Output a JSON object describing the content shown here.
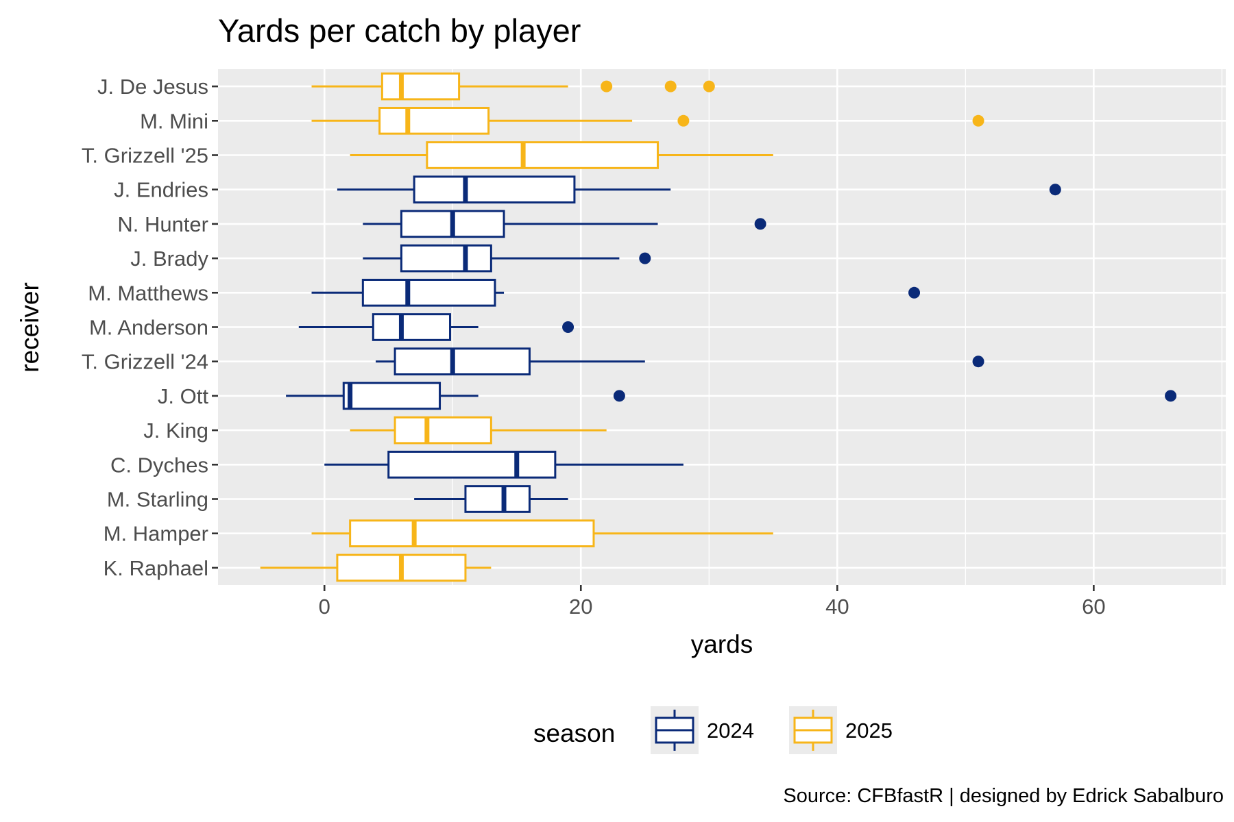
{
  "chart_data": {
    "type": "boxplot",
    "title": "Yards per catch by player",
    "xlabel": "yards",
    "ylabel": "receiver",
    "xlim": [
      -8.3,
      70.3
    ],
    "xticks": [
      0,
      20,
      40,
      60
    ],
    "grid": true,
    "legend": {
      "title": "season",
      "position": "bottom",
      "entries": [
        {
          "label": "2024",
          "color": "#0a2a78"
        },
        {
          "label": "2025",
          "color": "#f7b519"
        }
      ]
    },
    "caption": "Source: CFBfastR | designed by Edrick Sabalburo",
    "series": [
      {
        "receiver": "J. De Jesus",
        "season": "2025",
        "whisker_low": -1,
        "q1": 4.5,
        "median": 6,
        "q3": 10.5,
        "whisker_high": 19,
        "outliers": [
          22,
          27,
          30
        ]
      },
      {
        "receiver": "M. Mini",
        "season": "2025",
        "whisker_low": -1,
        "q1": 4.3,
        "median": 6.5,
        "q3": 12.8,
        "whisker_high": 24,
        "outliers": [
          28,
          51
        ]
      },
      {
        "receiver": "T. Grizzell '25",
        "season": "2025",
        "whisker_low": 2,
        "q1": 8,
        "median": 15.5,
        "q3": 26,
        "whisker_high": 35,
        "outliers": []
      },
      {
        "receiver": "J. Endries",
        "season": "2024",
        "whisker_low": 1,
        "q1": 7,
        "median": 11,
        "q3": 19.5,
        "whisker_high": 27,
        "outliers": [
          57
        ]
      },
      {
        "receiver": "N. Hunter",
        "season": "2024",
        "whisker_low": 3,
        "q1": 6,
        "median": 10,
        "q3": 14,
        "whisker_high": 26,
        "outliers": [
          34
        ]
      },
      {
        "receiver": "J. Brady",
        "season": "2024",
        "whisker_low": 3,
        "q1": 6,
        "median": 11,
        "q3": 13,
        "whisker_high": 23,
        "outliers": [
          25
        ]
      },
      {
        "receiver": "M. Matthews",
        "season": "2024",
        "whisker_low": -1,
        "q1": 3,
        "median": 6.5,
        "q3": 13.3,
        "whisker_high": 14,
        "outliers": [
          46
        ]
      },
      {
        "receiver": "M. Anderson",
        "season": "2024",
        "whisker_low": -2,
        "q1": 3.8,
        "median": 6,
        "q3": 9.8,
        "whisker_high": 12,
        "outliers": [
          19
        ]
      },
      {
        "receiver": "T. Grizzell '24",
        "season": "2024",
        "whisker_low": 4,
        "q1": 5.5,
        "median": 10,
        "q3": 16,
        "whisker_high": 25,
        "outliers": [
          51
        ]
      },
      {
        "receiver": "J. Ott",
        "season": "2024",
        "whisker_low": -3,
        "q1": 1.5,
        "median": 2,
        "q3": 9,
        "whisker_high": 12,
        "outliers": [
          23,
          66
        ]
      },
      {
        "receiver": "J. King",
        "season": "2025",
        "whisker_low": 2,
        "q1": 5.5,
        "median": 8,
        "q3": 13,
        "whisker_high": 22,
        "outliers": []
      },
      {
        "receiver": "C. Dyches",
        "season": "2024",
        "whisker_low": 0,
        "q1": 5,
        "median": 15,
        "q3": 18,
        "whisker_high": 28,
        "outliers": []
      },
      {
        "receiver": "M. Starling",
        "season": "2024",
        "whisker_low": 7,
        "q1": 11,
        "median": 14,
        "q3": 16,
        "whisker_high": 19,
        "outliers": []
      },
      {
        "receiver": "M. Hamper",
        "season": "2025",
        "whisker_low": -1,
        "q1": 2,
        "median": 7,
        "q3": 21,
        "whisker_high": 35,
        "outliers": []
      },
      {
        "receiver": "K. Raphael",
        "season": "2025",
        "whisker_low": -5,
        "q1": 1,
        "median": 6,
        "q3": 11,
        "whisker_high": 13,
        "outliers": []
      }
    ]
  }
}
